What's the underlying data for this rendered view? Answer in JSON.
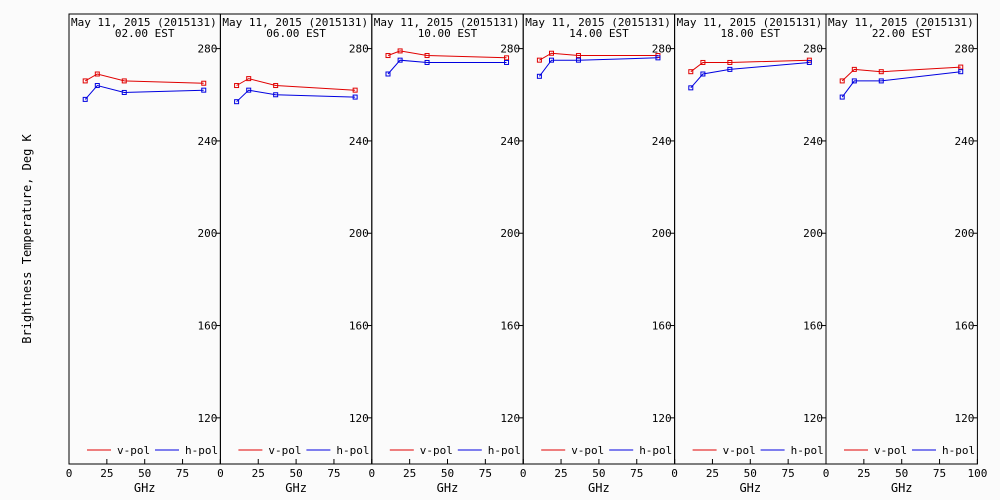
{
  "figure": {
    "ylabel": "Brightness Temperature, Deg K",
    "xlabel": "GHz"
  },
  "chart_data": {
    "type": "line",
    "xlim": [
      0,
      100
    ],
    "ylim": [
      100,
      295
    ],
    "x_ticks": [
      0,
      25,
      50,
      75,
      100
    ],
    "x_tick_labels": [
      "0",
      "25",
      "50",
      "75",
      "100"
    ],
    "y_ticks": [
      120,
      160,
      200,
      240,
      280
    ],
    "xlabel": "GHz",
    "ylabel": "Brightness Temperature, Deg K",
    "colors": {
      "v-pol": "#e00000",
      "h-pol": "#0000e0"
    },
    "legend": [
      "v-pol",
      "h-pol"
    ],
    "panels": [
      {
        "date": "May 11, 2015 (2015131)",
        "time": "02.00 EST",
        "series": [
          {
            "name": "v-pol",
            "x": [
              10.7,
              18.7,
              36.5,
              89
            ],
            "y": [
              266,
              269,
              266,
              265
            ]
          },
          {
            "name": "h-pol",
            "x": [
              10.7,
              18.7,
              36.5,
              89
            ],
            "y": [
              258,
              264,
              261,
              262
            ]
          }
        ]
      },
      {
        "date": "May 11, 2015 (2015131)",
        "time": "06.00 EST",
        "series": [
          {
            "name": "v-pol",
            "x": [
              10.7,
              18.7,
              36.5,
              89
            ],
            "y": [
              264,
              267,
              264,
              262
            ]
          },
          {
            "name": "h-pol",
            "x": [
              10.7,
              18.7,
              36.5,
              89
            ],
            "y": [
              257,
              262,
              260,
              259
            ]
          }
        ]
      },
      {
        "date": "May 11, 2015 (2015131)",
        "time": "10.00 EST",
        "series": [
          {
            "name": "v-pol",
            "x": [
              10.7,
              18.7,
              36.5,
              89
            ],
            "y": [
              277,
              279,
              277,
              276
            ]
          },
          {
            "name": "h-pol",
            "x": [
              10.7,
              18.7,
              36.5,
              89
            ],
            "y": [
              269,
              275,
              274,
              274
            ]
          }
        ]
      },
      {
        "date": "May 11, 2015 (2015131)",
        "time": "14.00 EST",
        "series": [
          {
            "name": "v-pol",
            "x": [
              10.7,
              18.7,
              36.5,
              89
            ],
            "y": [
              275,
              278,
              277,
              277
            ]
          },
          {
            "name": "h-pol",
            "x": [
              10.7,
              18.7,
              36.5,
              89
            ],
            "y": [
              268,
              275,
              275,
              276
            ]
          }
        ]
      },
      {
        "date": "May 11, 2015 (2015131)",
        "time": "18.00 EST",
        "series": [
          {
            "name": "v-pol",
            "x": [
              10.7,
              18.7,
              36.5,
              89
            ],
            "y": [
              270,
              274,
              274,
              275
            ]
          },
          {
            "name": "h-pol",
            "x": [
              10.7,
              18.7,
              36.5,
              89
            ],
            "y": [
              263,
              269,
              271,
              274
            ]
          }
        ]
      },
      {
        "date": "May 11, 2015 (2015131)",
        "time": "22.00 EST",
        "series": [
          {
            "name": "v-pol",
            "x": [
              10.7,
              18.7,
              36.5,
              89
            ],
            "y": [
              266,
              271,
              270,
              272
            ]
          },
          {
            "name": "h-pol",
            "x": [
              10.7,
              18.7,
              36.5,
              89
            ],
            "y": [
              259,
              266,
              266,
              270
            ]
          }
        ]
      }
    ]
  }
}
